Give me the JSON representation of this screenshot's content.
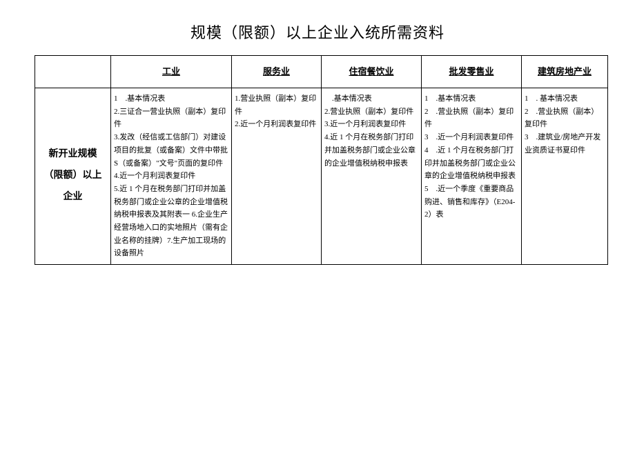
{
  "title": "规模（限额）以上企业入统所需资料",
  "columns": {
    "blank": "",
    "c1": "工业",
    "c2": "服务业",
    "c3": "住宿餐饮业",
    "c4": "批发零售业",
    "c5": "建筑房地产业"
  },
  "row1": {
    "header": "新开业规模（限额）以上企业",
    "c1": "1 .基本情况表\n2.三证合一营业执照（副本）复印件\n3.发改（经信或工信部门）对建设项目的批复（或备案）文件中带批\nS（或备案）\"文号\"页面的复印件\n4.近一个月利润表复印件\n5.近 1 个月在税务部门打印并加盖税务部门或企业公章的企业增值税纳税申报表及其附表一 6.企业生产经营场地入口的实地照片（需有企业名称的挂牌）7.生产加工现场的设备照片",
    "c2": "1.营业执照（副本）复印件\n2.近一个月利润表复印件",
    "c3": " .基本情况表\n2.营业执照（副本）复印件\n3.近一个月利润表复印件\n4.近 1 个月在税务部门打印并加盖税务部门或企业公章的企业增值税纳税申报表",
    "c4": "1 .基本情况表\n2 .营业执照（副本）复印件\n3 .近一个月利润表复印件\n4 .近 1 个月在税务部门打印并加盖税务部门或企业公章的企业增值税纳税申报表\n5 .近一个季度《重要商品购进、销售和库存》（E204-2）表",
    "c5": "1 . 基本情况表\n2 .营业执照（副本）复印件\n3 .建筑业/房地产开发业资质证书夏印件"
  },
  "style": {
    "background_color": "#ffffff",
    "border_color": "#000000",
    "title_fontsize": 22,
    "header_fontsize": 13,
    "cell_fontsize": 11,
    "rowheader_fontsize": 14
  }
}
